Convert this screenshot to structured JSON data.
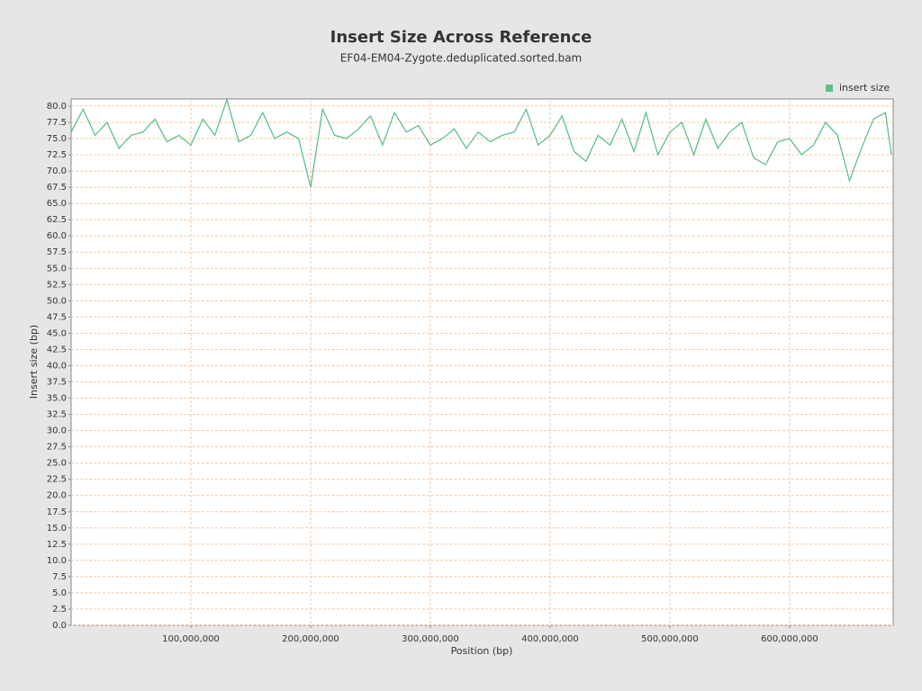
{
  "chart_data": {
    "type": "line",
    "title": "Insert Size Across Reference",
    "subtitle": "EF04-EM04-Zygote.deduplicated.sorted.bam",
    "x_label": "Position (bp)",
    "y_label": "Insert size (bp)",
    "legend": "top-right",
    "grid": true,
    "x": [
      0,
      10000000,
      20000000,
      30000000,
      40000000,
      50000000,
      60000000,
      70000000,
      80000000,
      90000000,
      100000000,
      110000000,
      120000000,
      130000000,
      140000000,
      150000000,
      160000000,
      170000000,
      180000000,
      190000000,
      200000000,
      210000000,
      220000000,
      230000000,
      240000000,
      250000000,
      260000000,
      270000000,
      280000000,
      290000000,
      300000000,
      310000000,
      320000000,
      330000000,
      340000000,
      350000000,
      360000000,
      370000000,
      380000000,
      390000000,
      400000000,
      410000000,
      420000000,
      430000000,
      440000000,
      450000000,
      460000000,
      470000000,
      480000000,
      490000000,
      500000000,
      510000000,
      520000000,
      530000000,
      540000000,
      550000000,
      560000000,
      570000000,
      580000000,
      590000000,
      600000000,
      610000000,
      620000000,
      630000000,
      640000000,
      650000000,
      660000000,
      670000000,
      680000000,
      685000000
    ],
    "series": [
      {
        "name": "insert size",
        "color": "#5ec08c",
        "values": [
          76,
          79.5,
          75.5,
          77.5,
          73.5,
          75.5,
          76,
          78,
          74.5,
          75.5,
          74,
          78,
          75.5,
          81,
          74.5,
          75.5,
          79,
          75,
          76,
          75,
          67.5,
          79.5,
          75.5,
          75,
          76.5,
          78.5,
          74,
          79,
          76,
          77,
          74,
          75,
          76.5,
          73.5,
          76,
          74.5,
          75.5,
          76,
          79.5,
          74,
          75.5,
          78.5,
          73,
          71.5,
          75.5,
          74,
          78,
          73,
          79,
          72.5,
          76,
          77.5,
          72.5,
          78,
          73.5,
          76,
          77.5,
          72,
          71,
          74.5,
          75,
          72.5,
          74,
          77.5,
          75.5,
          68.5,
          73.5,
          78,
          79,
          72.5
        ]
      }
    ],
    "xlim": [
      0,
      686500000
    ],
    "xticks": [
      {
        "value": 100000000,
        "label": "100,000,000"
      },
      {
        "value": 200000000,
        "label": "200,000,000"
      },
      {
        "value": 300000000,
        "label": "300,000,000"
      },
      {
        "value": 400000000,
        "label": "400,000,000"
      },
      {
        "value": 500000000,
        "label": "500,000,000"
      },
      {
        "value": 600000000,
        "label": "600,000,000"
      }
    ],
    "ylim": [
      0,
      81.1
    ],
    "yticks": [
      {
        "value": 0,
        "label": "0.0"
      },
      2.5,
      {
        "value": 5,
        "label": "5.0"
      },
      7.5,
      {
        "value": 10,
        "label": "10.0"
      },
      12.5,
      {
        "value": 15,
        "label": "15.0"
      },
      17.5,
      {
        "value": 20,
        "label": "20.0"
      },
      22.5,
      {
        "value": 25,
        "label": "25.0"
      },
      27.5,
      {
        "value": 30,
        "label": "30.0"
      },
      32.5,
      {
        "value": 35,
        "label": "35.0"
      },
      37.5,
      {
        "value": 40,
        "label": "40.0"
      },
      42.5,
      {
        "value": 45,
        "label": "45.0"
      },
      47.5,
      {
        "value": 50,
        "label": "50.0"
      },
      52.5,
      {
        "value": 55,
        "label": "55.0"
      },
      57.5,
      {
        "value": 60,
        "label": "60.0"
      },
      62.5,
      {
        "value": 65,
        "label": "65.0"
      },
      67.5,
      {
        "value": 70,
        "label": "70.0"
      },
      72.5,
      {
        "value": 75,
        "label": "75.0"
      },
      77.5,
      {
        "value": 80,
        "label": "80.0"
      }
    ]
  }
}
